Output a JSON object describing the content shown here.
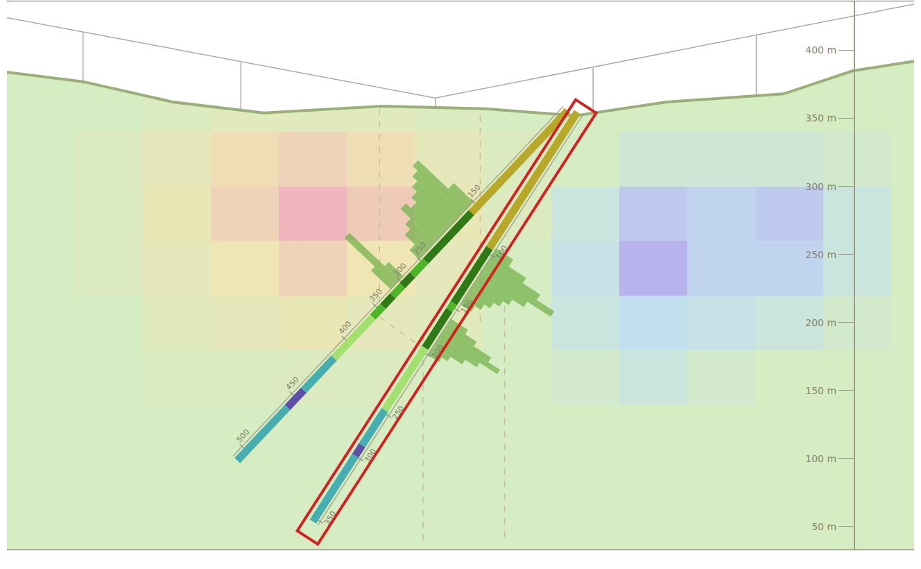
{
  "chart_data": {
    "type": "cross_section",
    "xlim": [
      0,
      667
    ],
    "ylim": [
      33,
      436
    ],
    "yticks": [
      {
        "value": 50,
        "label": "50 m"
      },
      {
        "value": 100,
        "label": "100 m"
      },
      {
        "value": 150,
        "label": "150 m"
      },
      {
        "value": 200,
        "label": "200 m"
      },
      {
        "value": 250,
        "label": "250 m"
      },
      {
        "value": 300,
        "label": "300 m"
      },
      {
        "value": 350,
        "label": "350 m"
      },
      {
        "value": 400,
        "label": "400 m"
      }
    ],
    "tick_labels": "y",
    "grid": false,
    "anomaly": {
      "x": [
        25,
        75,
        125,
        175,
        225,
        275,
        325,
        375,
        425,
        475,
        525,
        575,
        625,
        675
      ],
      "y": [
        40,
        80,
        120,
        160,
        200,
        240,
        280,
        320,
        360,
        400,
        440
      ],
      "zlim": [
        -1,
        1
      ],
      "cells": [
        [
          0,
          0,
          0,
          0,
          0,
          0,
          0,
          0,
          0,
          0,
          0,
          0,
          0,
          0
        ],
        [
          0,
          0,
          0,
          0,
          0,
          0,
          0,
          0,
          0,
          0,
          0,
          0,
          0,
          0
        ],
        [
          0,
          0,
          0,
          0,
          0,
          0,
          0,
          0,
          0,
          0,
          0,
          0,
          0,
          0
        ],
        [
          0,
          0,
          0.1,
          0.1,
          0.1,
          0.1,
          0,
          0,
          -0.1,
          -0.3,
          -0.1,
          0,
          0,
          0
        ],
        [
          0,
          0,
          0.2,
          0.3,
          0.4,
          0.3,
          0.2,
          0,
          -0.3,
          -0.5,
          -0.4,
          -0.3,
          -0.1,
          0
        ],
        [
          0,
          0.1,
          0.3,
          0.5,
          0.7,
          0.5,
          0.3,
          0,
          -0.4,
          -0.9,
          -0.6,
          -0.6,
          -0.3,
          0
        ],
        [
          0,
          0.1,
          0.4,
          0.7,
          1,
          0.8,
          0.4,
          0.1,
          -0.3,
          -0.7,
          -0.6,
          -0.7,
          -0.3,
          0
        ],
        [
          0,
          0.1,
          0.3,
          0.6,
          0.7,
          0.6,
          0.3,
          0.1,
          0,
          -0.2,
          -0.2,
          -0.2,
          -0.1,
          0
        ],
        [
          0,
          0,
          0.1,
          0.2,
          0.2,
          0.2,
          0.1,
          0,
          0,
          0,
          0,
          0,
          0,
          0
        ],
        [
          0,
          0,
          0,
          0,
          0,
          0,
          0,
          0,
          0,
          0,
          0,
          0,
          0,
          0
        ],
        [
          0,
          0,
          0,
          0,
          0,
          0,
          0,
          0,
          0,
          0,
          0,
          0,
          0,
          0
        ]
      ]
    },
    "surface": {
      "x": [
        0,
        56,
        122,
        189,
        276,
        352,
        418,
        485,
        571,
        622,
        667
      ],
      "y": [
        384,
        377,
        362,
        354,
        359,
        357,
        352,
        362,
        368,
        385,
        392
      ]
    },
    "section_line": {
      "x": [
        0,
        315,
        667
      ],
      "y": [
        424,
        365,
        434
      ]
    },
    "section_ticks": [
      {
        "x": 56,
        "top": 413,
        "bottom": 375
      },
      {
        "x": 172,
        "top": 391,
        "bottom": 355
      },
      {
        "x": 315,
        "top": 365,
        "bottom": 359
      },
      {
        "x": 431,
        "top": 387,
        "bottom": 357
      },
      {
        "x": 551,
        "top": 411,
        "bottom": 367
      }
    ],
    "guides": [
      {
        "x": [
          274,
          274
        ],
        "y": [
          357,
          202
        ]
      },
      {
        "x": [
          348,
          348
        ],
        "y": [
          352,
          196
        ]
      },
      {
        "x": [
          306,
          306
        ],
        "y": [
          191,
          39
        ]
      },
      {
        "x": [
          366,
          366
        ],
        "y": [
          212,
          39
        ]
      },
      {
        "x": [
          274,
          306
        ],
        "y": [
          204,
          181
        ]
      }
    ],
    "holes": [
      {
        "collar": {
          "depth": 0,
          "x": 412.2,
          "y": 355.6
        },
        "depth_marks": [
          {
            "depth": 150,
            "x": 346.3,
            "y": 285.7
          },
          {
            "depth": 250,
            "x": 306.3,
            "y": 243.4
          },
          {
            "depth": 300,
            "x": 291.8,
            "y": 228.1
          },
          {
            "depth": 350,
            "x": 274.0,
            "y": 209.2
          },
          {
            "depth": 400,
            "x": 251.3,
            "y": 185.2
          },
          {
            "depth": 450,
            "x": 212.8,
            "y": 144.4
          },
          {
            "depth": 500,
            "x": 176.2,
            "y": 105.6
          }
        ],
        "end": {
          "depth": 510,
          "x": 169.4,
          "y": 98.5
        },
        "intervals": [
          {
            "from": 0,
            "to": 162,
            "color": "#b8a82a"
          },
          {
            "from": 162,
            "to": 246,
            "color": "#2f7a17"
          },
          {
            "from": 246,
            "to": 278,
            "color": "#4db52a"
          },
          {
            "from": 278,
            "to": 303,
            "color": "#2f7a17"
          },
          {
            "from": 303,
            "to": 323,
            "color": "#4db52a"
          },
          {
            "from": 323,
            "to": 343,
            "color": "#2f7a17"
          },
          {
            "from": 343,
            "to": 361,
            "color": "#4db52a"
          },
          {
            "from": 361,
            "to": 414,
            "color": "#a3e070"
          },
          {
            "from": 414,
            "to": 443,
            "color": "#46aeb0"
          },
          {
            "from": 443,
            "to": 459,
            "color": "#5e50a8"
          },
          {
            "from": 459,
            "to": 510,
            "color": "#46aeb0"
          }
        ],
        "histograms": [
          {
            "from": 150,
            "to": 160,
            "value": 4
          },
          {
            "from": 160,
            "to": 170,
            "value": 10
          },
          {
            "from": 170,
            "to": 180,
            "value": 9
          },
          {
            "from": 180,
            "to": 190,
            "value": 8
          },
          {
            "from": 190,
            "to": 200,
            "value": 7
          },
          {
            "from": 200,
            "to": 210,
            "value": 6
          },
          {
            "from": 210,
            "to": 220,
            "value": 7
          },
          {
            "from": 220,
            "to": 230,
            "value": 5
          },
          {
            "from": 230,
            "to": 240,
            "value": 4
          },
          {
            "from": 240,
            "to": 250,
            "value": 2
          },
          {
            "from": 290,
            "to": 300,
            "value": 3
          },
          {
            "from": 300,
            "to": 310,
            "value": 10
          },
          {
            "from": 310,
            "to": 318,
            "value": 4
          }
        ]
      },
      {
        "collar": {
          "depth": 0,
          "x": 419.4,
          "y": 354.6
        },
        "depth_marks": [
          {
            "depth": 100,
            "x": 352.8,
            "y": 251.5
          },
          {
            "depth": 150,
            "x": 327.0,
            "y": 211.7
          },
          {
            "depth": 200,
            "x": 305.7,
            "y": 178.6
          },
          {
            "depth": 250,
            "x": 276.7,
            "y": 133.7
          },
          {
            "depth": 300,
            "x": 256.2,
            "y": 102.0
          },
          {
            "depth": 350,
            "x": 226.6,
            "y": 56.1
          }
        ],
        "end": {
          "depth": 355,
          "x": 225.0,
          "y": 53.6
        },
        "intervals": [
          {
            "from": 0,
            "to": 97,
            "color": "#b8a82a"
          },
          {
            "from": 97,
            "to": 147,
            "color": "#2f7a17"
          },
          {
            "from": 147,
            "to": 154,
            "color": "#4db52a"
          },
          {
            "from": 154,
            "to": 196,
            "color": "#2f7a17"
          },
          {
            "from": 196,
            "to": 248,
            "color": "#a3e070"
          },
          {
            "from": 248,
            "to": 288,
            "color": "#46aeb0"
          },
          {
            "from": 288,
            "to": 300,
            "color": "#5e50a8"
          },
          {
            "from": 300,
            "to": 355,
            "color": "#46aeb0"
          }
        ],
        "histograms": [
          {
            "from": 95,
            "to": 100,
            "value": 3
          },
          {
            "from": 100,
            "to": 105,
            "value": 6
          },
          {
            "from": 105,
            "to": 110,
            "value": 9
          },
          {
            "from": 110,
            "to": 115,
            "value": 12
          },
          {
            "from": 115,
            "to": 120,
            "value": 8
          },
          {
            "from": 120,
            "to": 125,
            "value": 6
          },
          {
            "from": 125,
            "to": 130,
            "value": 5
          },
          {
            "from": 130,
            "to": 135,
            "value": 4
          },
          {
            "from": 135,
            "to": 140,
            "value": 3
          },
          {
            "from": 140,
            "to": 145,
            "value": 2
          },
          {
            "from": 160,
            "to": 165,
            "value": 3
          },
          {
            "from": 165,
            "to": 170,
            "value": 5
          },
          {
            "from": 170,
            "to": 175,
            "value": 8
          },
          {
            "from": 175,
            "to": 180,
            "value": 10
          },
          {
            "from": 180,
            "to": 185,
            "value": 7
          },
          {
            "from": 185,
            "to": 190,
            "value": 5
          },
          {
            "from": 190,
            "to": 195,
            "value": 3
          },
          {
            "from": 195,
            "to": 200,
            "value": 2
          }
        ]
      }
    ]
  }
}
